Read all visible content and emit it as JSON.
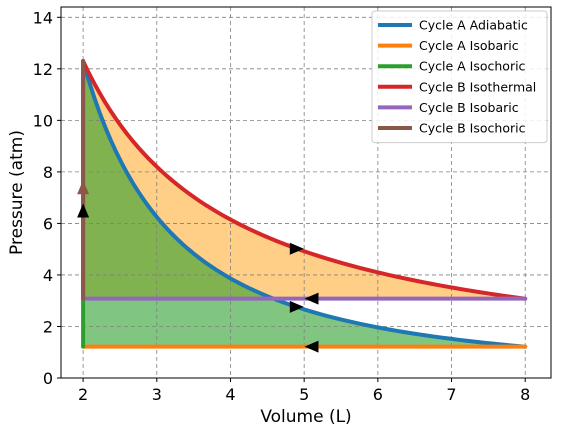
{
  "chart_data": {
    "type": "line",
    "xlabel": "Volume (L)",
    "ylabel": "Pressure (atm)",
    "xlim": [
      1.7,
      8.35
    ],
    "ylim": [
      0,
      14.4
    ],
    "xticks": [
      2,
      3,
      4,
      5,
      6,
      7,
      8
    ],
    "yticks": [
      0,
      2,
      4,
      6,
      8,
      10,
      12,
      14
    ],
    "grid": true,
    "legend_position": "top-right",
    "series": [
      {
        "name": "Cycle A Adiabatic",
        "color": "#1f77b4",
        "kind": "adiabatic",
        "x_range": [
          2,
          8
        ],
        "p_at_x0": 12.3,
        "gamma": 1.67
      },
      {
        "name": "Cycle A Isobaric",
        "color": "#ff7f0e",
        "x": [
          2,
          8
        ],
        "y": [
          1.22,
          1.22
        ]
      },
      {
        "name": "Cycle A Isochoric",
        "color": "#2ca02c",
        "x": [
          2,
          2
        ],
        "y": [
          1.22,
          12.3
        ]
      },
      {
        "name": "Cycle B Isothermal",
        "color": "#d62728",
        "kind": "isothermal",
        "x_range": [
          2,
          8
        ],
        "p_at_x0": 12.3
      },
      {
        "name": "Cycle B Isobaric",
        "color": "#9467bd",
        "x": [
          2,
          8
        ],
        "y": [
          3.08,
          3.08
        ]
      },
      {
        "name": "Cycle B Isochoric",
        "color": "#8c564b",
        "x": [
          2,
          2
        ],
        "y": [
          3.08,
          12.3
        ]
      }
    ],
    "fills": [
      {
        "cycle": "B",
        "between": [
          "Cycle B Isothermal",
          "Cycle B Isobaric"
        ],
        "color": "#ffa726",
        "opacity": 0.55
      },
      {
        "cycle": "A",
        "between": [
          "Cycle A Adiabatic",
          "Cycle A Isobaric"
        ],
        "color": "#2ca02c",
        "opacity": 0.6
      }
    ],
    "arrows": [
      {
        "x": 4.9,
        "y": 5.02,
        "direction": "right",
        "color": "#000000"
      },
      {
        "x": 4.9,
        "y": 2.76,
        "direction": "right",
        "color": "#000000"
      },
      {
        "x": 5.1,
        "y": 3.08,
        "direction": "left",
        "color": "#000000"
      },
      {
        "x": 5.1,
        "y": 1.22,
        "direction": "left",
        "color": "#000000"
      },
      {
        "x": 2.0,
        "y": 6.5,
        "direction": "up",
        "color": "#000000"
      },
      {
        "x": 2.0,
        "y": 7.4,
        "direction": "up",
        "color": "#8c564b"
      }
    ]
  }
}
